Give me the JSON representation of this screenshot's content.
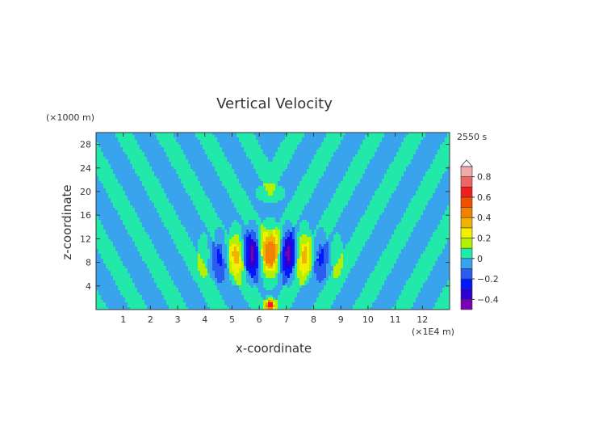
{
  "chart_data": {
    "type": "heatmap",
    "title": "Vertical Velocity",
    "xlabel": "x-coordinate",
    "ylabel": "z-coordinate",
    "x_unit": "(×1E4 m)",
    "y_unit": "(×1000 m)",
    "time_label": "2550 s",
    "xlim": [
      0,
      13
    ],
    "ylim": [
      0,
      30
    ],
    "x_ticks": [
      1,
      2,
      3,
      4,
      5,
      6,
      7,
      8,
      9,
      10,
      11,
      12
    ],
    "y_ticks": [
      4,
      8,
      12,
      16,
      20,
      24,
      28
    ],
    "colorbar": {
      "min": -0.5,
      "max": 0.9,
      "tick_values": [
        -0.4,
        -0.2,
        0,
        0.2,
        0.4,
        0.6,
        0.8
      ],
      "tick_labels": [
        "−0.4",
        "−0.2",
        "0",
        "0.2",
        "0.4",
        "0.6",
        "0.8"
      ],
      "levels": [
        {
          "from": -0.5,
          "to": -0.4,
          "color": "#7a00b4"
        },
        {
          "from": -0.4,
          "to": -0.3,
          "color": "#2b00d0"
        },
        {
          "from": -0.3,
          "to": -0.2,
          "color": "#0018ff"
        },
        {
          "from": -0.2,
          "to": -0.1,
          "color": "#2a5cf0"
        },
        {
          "from": -0.1,
          "to": 0.0,
          "color": "#3aa3ee"
        },
        {
          "from": 0.0,
          "to": 0.1,
          "color": "#22e8aa"
        },
        {
          "from": 0.1,
          "to": 0.2,
          "color": "#b4f000"
        },
        {
          "from": 0.2,
          "to": 0.3,
          "color": "#f0f000"
        },
        {
          "from": 0.3,
          "to": 0.4,
          "color": "#f0b400"
        },
        {
          "from": 0.4,
          "to": 0.5,
          "color": "#f08200"
        },
        {
          "from": 0.5,
          "to": 0.6,
          "color": "#f05000"
        },
        {
          "from": 0.6,
          "to": 0.7,
          "color": "#f01e1e"
        },
        {
          "from": 0.7,
          "to": 0.8,
          "color": "#f06464"
        },
        {
          "from": 0.8,
          "to": 0.9,
          "color": "#f0aaaa"
        }
      ],
      "over_color": "#ffffff"
    },
    "field": {
      "description": "mountain-wave vertical velocity pattern, symmetric about x = 6.4",
      "center_x": 6.4
    }
  }
}
